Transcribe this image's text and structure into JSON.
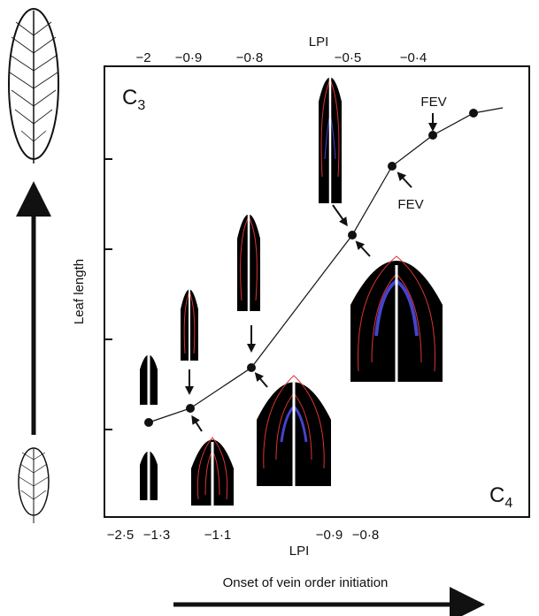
{
  "top_axis": {
    "title": "LPI",
    "ticks": [
      "−2",
      "−0·9",
      "−0·8",
      "−0·5",
      "−0·4"
    ]
  },
  "bottom_axis": {
    "title": "LPI",
    "ticks": [
      "−2·5",
      "−1·3",
      "−1·1",
      "−0·9",
      "−0·8"
    ]
  },
  "y_axis_title": "Leaf length",
  "corner_labels": {
    "top_left": {
      "letter": "C",
      "subscript": "3"
    },
    "bottom_right": {
      "letter": "C",
      "subscript": "4"
    }
  },
  "annotations": [
    "FEV",
    "FEV"
  ],
  "caption": "Onset of vein order initiation"
}
